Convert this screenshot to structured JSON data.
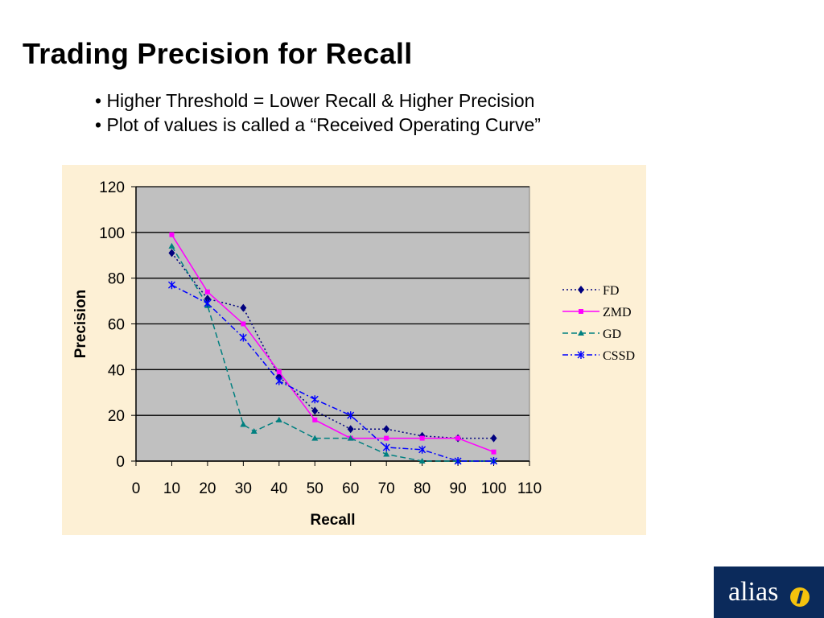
{
  "slide": {
    "title": "Trading Precision for Recall",
    "bullets": [
      "• Higher Threshold = Lower Recall & Higher Precision",
      "• Plot of values is called a “Received Operating Curve”"
    ]
  },
  "logo": {
    "text": "alias",
    "icon": "i-circle-icon",
    "background": "#0b2a5b",
    "accent": "#f4c20d"
  },
  "chart_data": {
    "type": "line",
    "title": "",
    "xlabel": "Recall",
    "ylabel": "Precision",
    "xlim": [
      0,
      110
    ],
    "ylim": [
      0,
      120
    ],
    "x_ticks": [
      0,
      10,
      20,
      30,
      40,
      50,
      60,
      70,
      80,
      90,
      100,
      110
    ],
    "y_ticks": [
      0,
      20,
      40,
      60,
      80,
      100,
      120
    ],
    "grid": "horizontal",
    "legend_position": "right",
    "plot_background": "#c0c0c0",
    "panel_background": "#fdf0d5",
    "series": [
      {
        "name": "FD",
        "color": "#00007f",
        "dash": "dotted",
        "marker": "diamond",
        "points": [
          [
            10,
            91
          ],
          [
            20,
            71
          ],
          [
            30,
            67
          ],
          [
            40,
            37
          ],
          [
            50,
            22
          ],
          [
            60,
            14
          ],
          [
            70,
            14
          ],
          [
            80,
            11
          ],
          [
            90,
            10
          ],
          [
            100,
            10
          ]
        ]
      },
      {
        "name": "ZMD",
        "color": "#ff00ff",
        "dash": "solid",
        "marker": "square",
        "points": [
          [
            10,
            99
          ],
          [
            20,
            74
          ],
          [
            30,
            60
          ],
          [
            40,
            39
          ],
          [
            50,
            18
          ],
          [
            60,
            10
          ],
          [
            70,
            10
          ],
          [
            80,
            10
          ],
          [
            90,
            10
          ],
          [
            100,
            4
          ]
        ]
      },
      {
        "name": "GD",
        "color": "#008080",
        "dash": "dashed",
        "marker": "triangle",
        "points": [
          [
            10,
            94
          ],
          [
            20,
            68
          ],
          [
            30,
            16
          ],
          [
            33,
            13
          ],
          [
            40,
            18
          ],
          [
            50,
            10
          ],
          [
            60,
            10
          ],
          [
            70,
            3
          ],
          [
            80,
            0
          ],
          [
            90,
            0
          ],
          [
            100,
            0
          ]
        ]
      },
      {
        "name": "CSSD",
        "color": "#0000ff",
        "dash": "dashdot",
        "marker": "star",
        "points": [
          [
            10,
            77
          ],
          [
            20,
            69
          ],
          [
            30,
            54
          ],
          [
            40,
            35
          ],
          [
            50,
            27
          ],
          [
            60,
            20
          ],
          [
            70,
            6
          ],
          [
            80,
            5
          ],
          [
            90,
            0
          ],
          [
            100,
            0
          ]
        ]
      }
    ]
  }
}
